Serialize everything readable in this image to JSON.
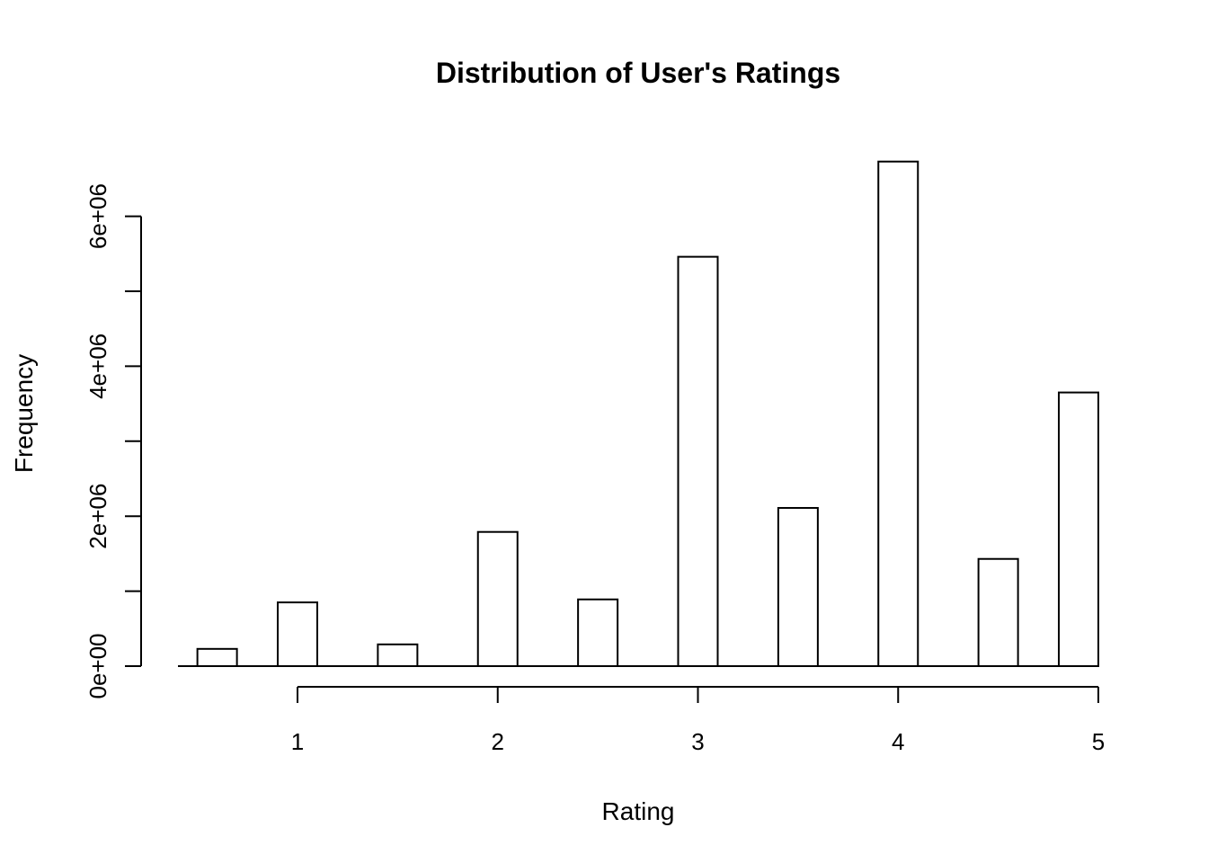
{
  "chart_data": {
    "type": "bar",
    "title": "Distribution of User's Ratings",
    "xlabel": "Rating",
    "ylabel": "Frequency",
    "x": [
      0.5,
      1.0,
      1.5,
      2.0,
      2.5,
      3.0,
      3.5,
      4.0,
      4.5,
      5.0
    ],
    "values": [
      230000,
      850000,
      290000,
      1790000,
      890000,
      5460000,
      2110000,
      6730000,
      1430000,
      3650000
    ],
    "xlim": [
      0.5,
      5.0
    ],
    "ylim": [
      0,
      6730000
    ],
    "x_ticks": [
      1,
      2,
      3,
      4,
      5
    ],
    "x_tick_labels": [
      "1",
      "2",
      "3",
      "4",
      "5"
    ],
    "y_ticks": [
      0,
      1000000,
      2000000,
      3000000,
      4000000,
      5000000,
      6000000
    ],
    "y_tick_labels": [
      "0e+00",
      "",
      "2e+06",
      "",
      "4e+06",
      "",
      "6e+06"
    ],
    "grid": false,
    "legend": "none",
    "colors": {
      "bar_fill": "#ffffff",
      "bar_stroke": "#000000"
    }
  }
}
